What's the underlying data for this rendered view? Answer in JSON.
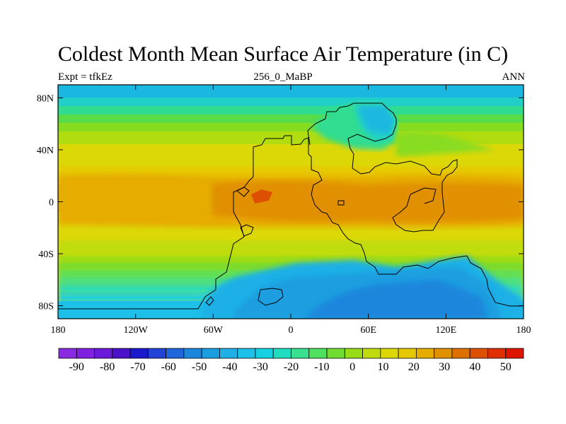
{
  "title": "Coldest Month Mean Surface Air Temperature (in C)",
  "subtitle_left": "Expt = tfkEz",
  "subtitle_center": "256_0_MaBP",
  "subtitle_right": "ANN",
  "map": {
    "lon_range": [
      -180,
      180
    ],
    "lat_range": [
      -90,
      90
    ],
    "x_ticks": [
      {
        "label": "180",
        "value": -180
      },
      {
        "label": "120W",
        "value": -120
      },
      {
        "label": "60W",
        "value": -60
      },
      {
        "label": "0",
        "value": 0
      },
      {
        "label": "60E",
        "value": 60
      },
      {
        "label": "120E",
        "value": 120
      },
      {
        "label": "180",
        "value": 180
      }
    ],
    "y_ticks": [
      {
        "label": "80N",
        "value": 80
      },
      {
        "label": "40N",
        "value": 40
      },
      {
        "label": "0",
        "value": 0
      },
      {
        "label": "40S",
        "value": -40
      },
      {
        "label": "80S",
        "value": -80
      }
    ]
  },
  "colorbar": {
    "labels": [
      "-90",
      "-80",
      "-70",
      "-60",
      "-50",
      "-40",
      "-30",
      "-20",
      "-10",
      "0",
      "10",
      "20",
      "30",
      "40",
      "50"
    ],
    "colors": [
      "#8a2be2",
      "#7f1fe0",
      "#6a1ad8",
      "#4b12c8",
      "#1a1acc",
      "#2244d6",
      "#1e66dc",
      "#1a86dc",
      "#1a9ee0",
      "#20b0e6",
      "#1cc0e8",
      "#18d0e4",
      "#20dcc0",
      "#38e090",
      "#50e060",
      "#70dc30",
      "#98dc18",
      "#c0dc10",
      "#dcd808",
      "#e6c800",
      "#e6ac00",
      "#e09000",
      "#dc7000",
      "#dc5000",
      "#e03000",
      "#dc1400"
    ]
  }
}
